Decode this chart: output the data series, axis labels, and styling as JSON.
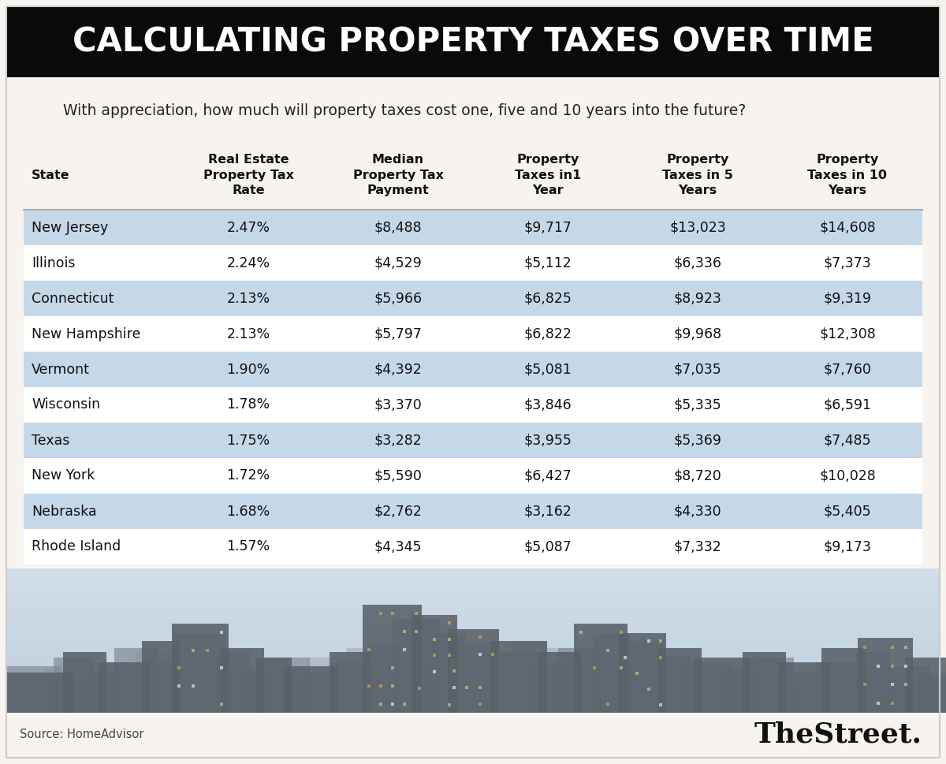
{
  "title": "CALCULATING PROPERTY TAXES OVER TIME",
  "subtitle": "With appreciation, how much will property taxes cost one, five and 10 years into the future?",
  "header_bg": "#0a0a0a",
  "header_text_color": "#ffffff",
  "body_bg": "#f7f4f0",
  "table_bg_white": "#ffffff",
  "table_bg_blue": "#c5d8e8",
  "col_headers": [
    "State",
    "Real Estate\nProperty Tax\nRate",
    "Median\nProperty Tax\nPayment",
    "Property\nTaxes in1\nYear",
    "Property\nTaxes in 5\nYears",
    "Property\nTaxes in 10\nYears"
  ],
  "rows": [
    [
      "New Jersey",
      "2.47%",
      "$8,488",
      "$9,717",
      "$13,023",
      "$14,608"
    ],
    [
      "Illinois",
      "2.24%",
      "$4,529",
      "$5,112",
      "$6,336",
      "$7,373"
    ],
    [
      "Connecticut",
      "2.13%",
      "$5,966",
      "$6,825",
      "$8,923",
      "$9,319"
    ],
    [
      "New Hampshire",
      "2.13%",
      "$5,797",
      "$6,822",
      "$9,968",
      "$12,308"
    ],
    [
      "Vermont",
      "1.90%",
      "$4,392",
      "$5,081",
      "$7,035",
      "$7,760"
    ],
    [
      "Wisconsin",
      "1.78%",
      "$3,370",
      "$3,846",
      "$5,335",
      "$6,591"
    ],
    [
      "Texas",
      "1.75%",
      "$3,282",
      "$3,955",
      "$5,369",
      "$7,485"
    ],
    [
      "New York",
      "1.72%",
      "$5,590",
      "$6,427",
      "$8,720",
      "$10,028"
    ],
    [
      "Nebraska",
      "1.68%",
      "$2,762",
      "$3,162",
      "$4,330",
      "$5,405"
    ],
    [
      "Rhode Island",
      "1.57%",
      "$4,345",
      "$5,087",
      "$7,332",
      "$9,173"
    ]
  ],
  "row_shading": [
    true,
    false,
    true,
    false,
    true,
    false,
    true,
    false,
    true,
    false
  ],
  "source_text": "Source: HomeAdvisor",
  "brand_text": "TheStreet.",
  "outer_border_color": "#cccccc",
  "divider_color": "#aaaaaa"
}
